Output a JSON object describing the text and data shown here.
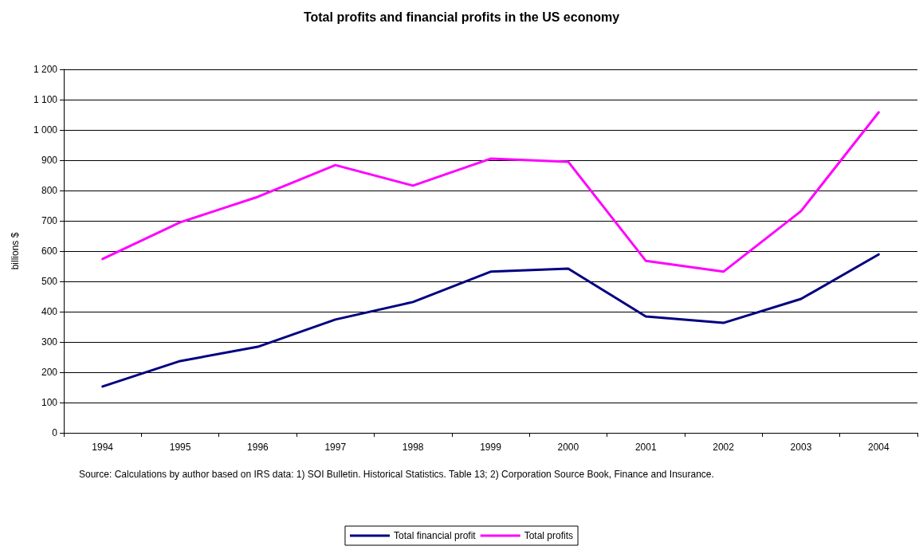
{
  "chart_data": {
    "type": "line",
    "title": "Total profits and financial profits in the US economy",
    "ylabel": "billions $",
    "categories": [
      "1994",
      "1995",
      "1996",
      "1997",
      "1998",
      "1999",
      "2000",
      "2001",
      "2002",
      "2003",
      "2004"
    ],
    "series": [
      {
        "name": "Total financial profit",
        "color": "#000080",
        "values": [
          153,
          237,
          284,
          374,
          432,
          532,
          542,
          384,
          363,
          442,
          589
        ]
      },
      {
        "name": "Total profits",
        "color": "#ff00ff",
        "values": [
          574,
          695,
          779,
          884,
          816,
          905,
          895,
          568,
          532,
          732,
          1058
        ]
      }
    ],
    "ylim": [
      0,
      1200
    ],
    "yticks": [
      0,
      100,
      200,
      300,
      400,
      500,
      600,
      700,
      800,
      900,
      {
        "value": 1000,
        "label": "1 000"
      },
      {
        "value": 1100,
        "label": "1 100"
      },
      {
        "value": 1200,
        "label": "1 200"
      }
    ],
    "grid": "y",
    "legend": "bottom",
    "marker": "none",
    "line_style": "solid",
    "annotations": [
      "Source: Calculations by author based on IRS data: 1) SOI Bulletin. Historical Statistics. Table 13; 2) Corporation Source Book, Finance and Insurance."
    ]
  }
}
